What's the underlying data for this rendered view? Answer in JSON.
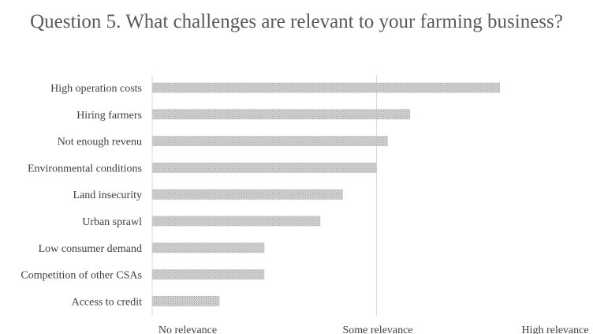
{
  "chart_data": {
    "type": "bar",
    "orientation": "horizontal",
    "title": "Question 5. What challenges are relevant to your farming business?",
    "categories": [
      "High operation costs",
      "Hiring farmers",
      "Not enough revenu",
      "Environmental conditions",
      "Land insecurity",
      "Urban sprawl",
      "Low consumer demand",
      "Competition of other CSAs",
      "Access to credit"
    ],
    "values": [
      1.55,
      1.15,
      1.05,
      1.0,
      0.85,
      0.75,
      0.5,
      0.5,
      0.3
    ],
    "xlim": [
      0,
      2
    ],
    "x_tick_values": [
      0,
      1,
      2
    ],
    "x_tick_labels": [
      "No relevance",
      "Some relevance",
      "High relevance"
    ],
    "grid": "vertical",
    "legend": "none",
    "bar_color": "#d0d0d0",
    "bar_pattern_color": "#a6a6a6",
    "gridline_color": "#d9d9d9"
  }
}
